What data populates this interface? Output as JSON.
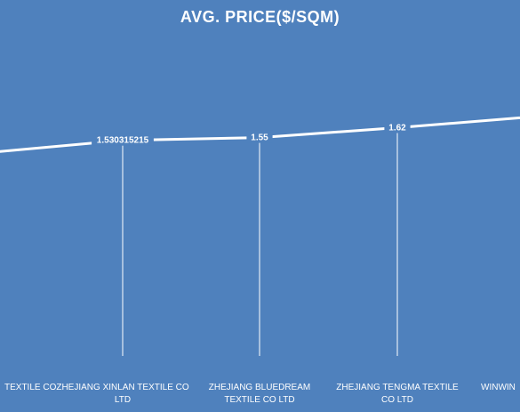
{
  "chart_data": {
    "type": "line",
    "title": "AVG. PRICE($/SQM)",
    "xlabel": "",
    "ylabel": "",
    "categories": [
      [
        "TEXTILE  CO"
      ],
      [
        "ZHEJIANG XINLAN  TEXTILE CO",
        "LTD"
      ],
      [
        "ZHEJIANG BLUEDREAM",
        "TEXTILE  CO  LTD"
      ],
      [
        "ZHEJIANG TENGMA  TEXTILE",
        "CO  LTD"
      ],
      [
        "WINWIN"
      ]
    ],
    "series": [
      {
        "values": [
          1.45,
          1.530315215,
          1.55,
          1.62,
          1.69
        ],
        "labels": [
          "",
          "1.530315215",
          "1.55",
          "1.62",
          ""
        ]
      }
    ],
    "ylim": [
      0,
      2.4
    ],
    "grid": false,
    "drop_lines": true,
    "line_color": "#ffffff",
    "background": "#4f81bd"
  }
}
